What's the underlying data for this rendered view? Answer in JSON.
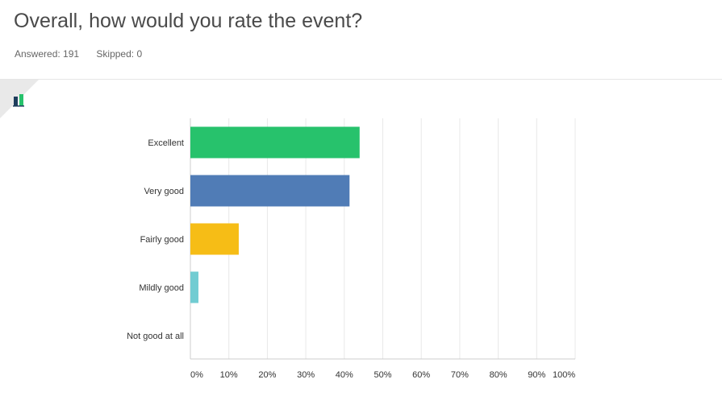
{
  "question": {
    "title": "Overall, how would you rate the event?",
    "answered_label": "Answered: 191",
    "skipped_label": "Skipped: 0"
  },
  "icon": "bar-chart-icon",
  "colors": {
    "excellent": "#27c26c",
    "very_good": "#507cb6",
    "fairly_good": "#f6bd16",
    "mildly_good": "#71ccd2",
    "not_good": "#f7a77a",
    "grid": "#e8e8e8",
    "axis": "#cccccc"
  },
  "chart_data": {
    "type": "bar",
    "orientation": "horizontal",
    "categories": [
      "Excellent",
      "Very good",
      "Fairly good",
      "Mildly good",
      "Not good at all"
    ],
    "values": [
      43.98,
      41.36,
      12.57,
      2.09,
      0.0
    ],
    "unit": "%",
    "xlim": [
      0,
      100
    ],
    "ticks": [
      "0%",
      "10%",
      "20%",
      "30%",
      "40%",
      "50%",
      "60%",
      "70%",
      "80%",
      "90%",
      "100%"
    ],
    "grid": true,
    "legend": "none"
  }
}
